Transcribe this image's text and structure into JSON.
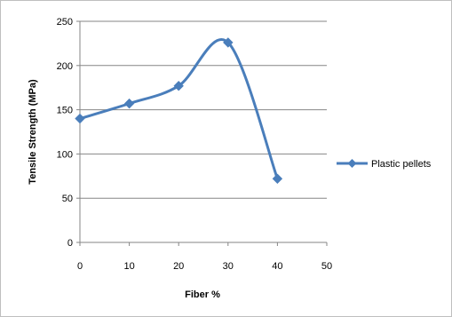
{
  "chart_data": {
    "type": "line",
    "smooth": true,
    "x": [
      0,
      10,
      20,
      30,
      40
    ],
    "series": [
      {
        "name": "Plastic pellets",
        "values": [
          140,
          157,
          177,
          226,
          72
        ]
      }
    ],
    "xlabel": "Fiber %",
    "ylabel": "Tensile Strength (MPa)",
    "xlim": [
      0,
      50
    ],
    "ylim": [
      0,
      250
    ],
    "xticks": [
      "0",
      "10",
      "20",
      "30",
      "40",
      "50"
    ],
    "yticks": [
      "0",
      "50",
      "100",
      "150",
      "200",
      "250"
    ],
    "grid": "horizontal",
    "legend_position": "right",
    "colors": {
      "series": "#4a7ebb",
      "grid": "#868686"
    }
  }
}
